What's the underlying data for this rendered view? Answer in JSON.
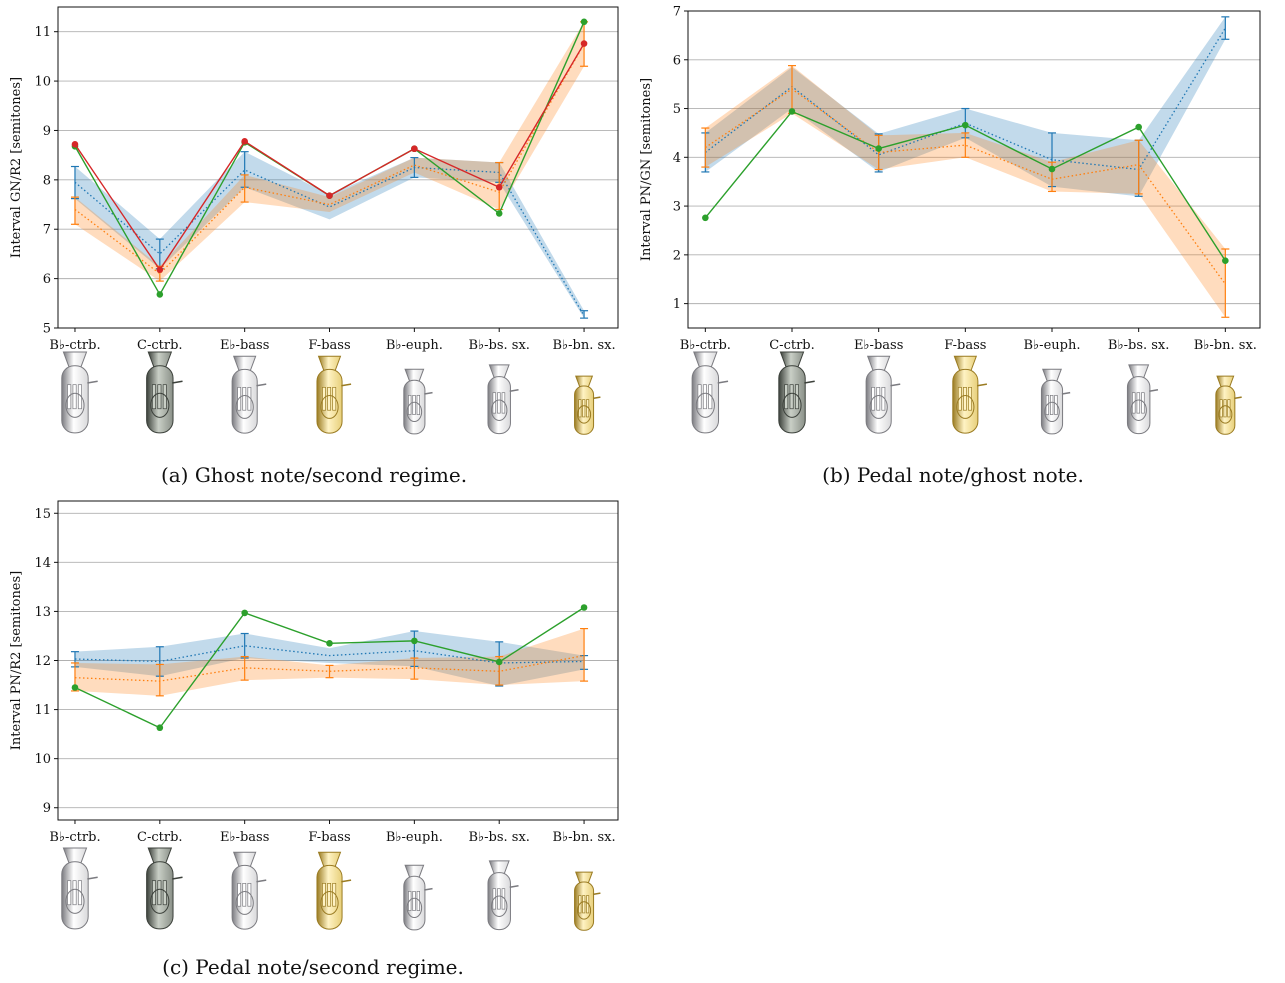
{
  "figures": [
    {
      "id": "a",
      "caption": "(a) Ghost note/second regime.",
      "chart_data": {
        "type": "line",
        "title": "",
        "ylabel": "Interval GN/R2 [semitones]",
        "ylim": [
          5,
          11.5
        ],
        "yticks": [
          5,
          6,
          7,
          8,
          9,
          10,
          11
        ],
        "grid": "horizontal",
        "legend": "none",
        "categories": [
          "B♭-ctrb.",
          "C-ctrb.",
          "E♭-bass",
          "F-bass",
          "B♭-euph.",
          "B♭-bs. sx.",
          "B♭-bn. sx."
        ],
        "series": [
          {
            "color": "#1f77b4",
            "style": "dotted-band",
            "mean": [
              7.95,
              6.5,
              8.2,
              7.45,
              8.25,
              8.15,
              5.25
            ],
            "lower": [
              7.62,
              6.2,
              7.85,
              7.2,
              8.05,
              7.95,
              5.2
            ],
            "upper": [
              8.27,
              6.8,
              8.57,
              7.7,
              8.45,
              8.35,
              5.35
            ],
            "errorbars": [
              true,
              true,
              true,
              false,
              true,
              true,
              true
            ]
          },
          {
            "color": "#ff7f0e",
            "style": "dotted-band",
            "mean": [
              7.4,
              6.1,
              7.85,
              7.5,
              8.3,
              7.75,
              10.75
            ],
            "lower": [
              7.1,
              5.95,
              7.55,
              7.35,
              8.15,
              7.4,
              10.3
            ],
            "upper": [
              7.65,
              6.25,
              8.1,
              7.65,
              8.45,
              8.35,
              11.2
            ],
            "errorbars": [
              true,
              true,
              true,
              false,
              false,
              true,
              true
            ]
          },
          {
            "color": "#2ca02c",
            "style": "solid-points",
            "values": [
              8.68,
              5.68,
              8.76,
              7.68,
              8.63,
              7.32,
              11.2
            ]
          },
          {
            "color": "#d62728",
            "style": "solid-points",
            "values": [
              8.72,
              6.18,
              8.78,
              7.68,
              8.63,
              7.85,
              10.76
            ]
          }
        ]
      }
    },
    {
      "id": "b",
      "caption": "(b) Pedal note/ghost note.",
      "chart_data": {
        "type": "line",
        "title": "",
        "ylabel": "Interval PN/GN [semitones]",
        "ylim": [
          0.5,
          7
        ],
        "yticks": [
          1,
          2,
          3,
          4,
          5,
          6,
          7
        ],
        "grid": "horizontal",
        "legend": "none",
        "categories": [
          "B♭-ctrb.",
          "C-ctrb.",
          "E♭-bass",
          "F-bass",
          "B♭-euph.",
          "B♭-bs. sx.",
          "B♭-bn. sx."
        ],
        "series": [
          {
            "color": "#1f77b4",
            "style": "dotted-band",
            "mean": [
              4.1,
              5.45,
              4.05,
              4.7,
              3.95,
              3.75,
              6.65
            ],
            "lower": [
              3.7,
              5.0,
              3.7,
              4.4,
              3.4,
              3.2,
              6.42
            ],
            "upper": [
              4.5,
              5.85,
              4.48,
              5.0,
              4.5,
              4.35,
              6.88
            ],
            "errorbars": [
              true,
              false,
              true,
              true,
              true,
              true,
              true
            ]
          },
          {
            "color": "#ff7f0e",
            "style": "dotted-band",
            "mean": [
              4.2,
              5.4,
              4.1,
              4.25,
              3.55,
              3.85,
              1.4
            ],
            "lower": [
              3.8,
              4.9,
              3.75,
              4.0,
              3.3,
              3.25,
              0.72
            ],
            "upper": [
              4.6,
              5.88,
              4.45,
              4.5,
              3.9,
              4.35,
              2.12
            ],
            "errorbars": [
              true,
              true,
              true,
              true,
              true,
              true,
              true
            ]
          },
          {
            "color": "#2ca02c",
            "style": "solid-points",
            "values": [
              2.76,
              4.94,
              4.18,
              4.66,
              3.76,
              4.62,
              1.88
            ]
          }
        ]
      }
    },
    {
      "id": "c",
      "caption": "(c) Pedal note/second regime.",
      "chart_data": {
        "type": "line",
        "title": "",
        "ylabel": "Interval PN/R2 [semitones]",
        "ylim": [
          8.75,
          15.25
        ],
        "yticks": [
          9,
          10,
          11,
          12,
          13,
          14,
          15
        ],
        "grid": "horizontal",
        "legend": "none",
        "categories": [
          "B♭-ctrb.",
          "C-ctrb.",
          "E♭-bass",
          "F-bass",
          "B♭-euph.",
          "B♭-bs. sx.",
          "B♭-bn. sx."
        ],
        "series": [
          {
            "color": "#1f77b4",
            "style": "dotted-band",
            "mean": [
              12.03,
              11.98,
              12.3,
              12.1,
              12.2,
              11.95,
              11.98
            ],
            "lower": [
              11.87,
              11.68,
              12.05,
              11.95,
              11.88,
              11.48,
              11.82
            ],
            "upper": [
              12.18,
              12.28,
              12.55,
              12.25,
              12.6,
              12.38,
              12.1
            ],
            "errorbars": [
              true,
              true,
              true,
              false,
              true,
              true,
              true
            ]
          },
          {
            "color": "#ff7f0e",
            "style": "dotted-band",
            "mean": [
              11.65,
              11.58,
              11.85,
              11.78,
              11.85,
              11.78,
              12.1
            ],
            "lower": [
              11.38,
              11.28,
              11.6,
              11.65,
              11.62,
              11.5,
              11.58
            ],
            "upper": [
              11.95,
              11.92,
              12.08,
              11.9,
              12.05,
              12.08,
              12.65
            ],
            "errorbars": [
              true,
              true,
              true,
              true,
              true,
              true,
              true
            ]
          },
          {
            "color": "#2ca02c",
            "style": "solid-points",
            "values": [
              11.45,
              10.63,
              12.97,
              12.35,
              12.4,
              11.97,
              13.08
            ]
          }
        ]
      }
    }
  ],
  "instruments": [
    {
      "name": "bb-contrabass-tuba",
      "tone": "silver"
    },
    {
      "name": "c-contrabass-tuba",
      "tone": "dark"
    },
    {
      "name": "eb-bass-tuba",
      "tone": "silver"
    },
    {
      "name": "f-bass-tuba",
      "tone": "gold"
    },
    {
      "name": "bb-euphonium",
      "tone": "silver"
    },
    {
      "name": "bb-bass-saxhorn",
      "tone": "silver"
    },
    {
      "name": "bb-baritone-saxhorn",
      "tone": "gold"
    }
  ],
  "colors": {
    "blue": "#1f77b4",
    "orange": "#ff7f0e",
    "green": "#2ca02c",
    "red": "#d62728",
    "grid": "#b0b0b0"
  }
}
